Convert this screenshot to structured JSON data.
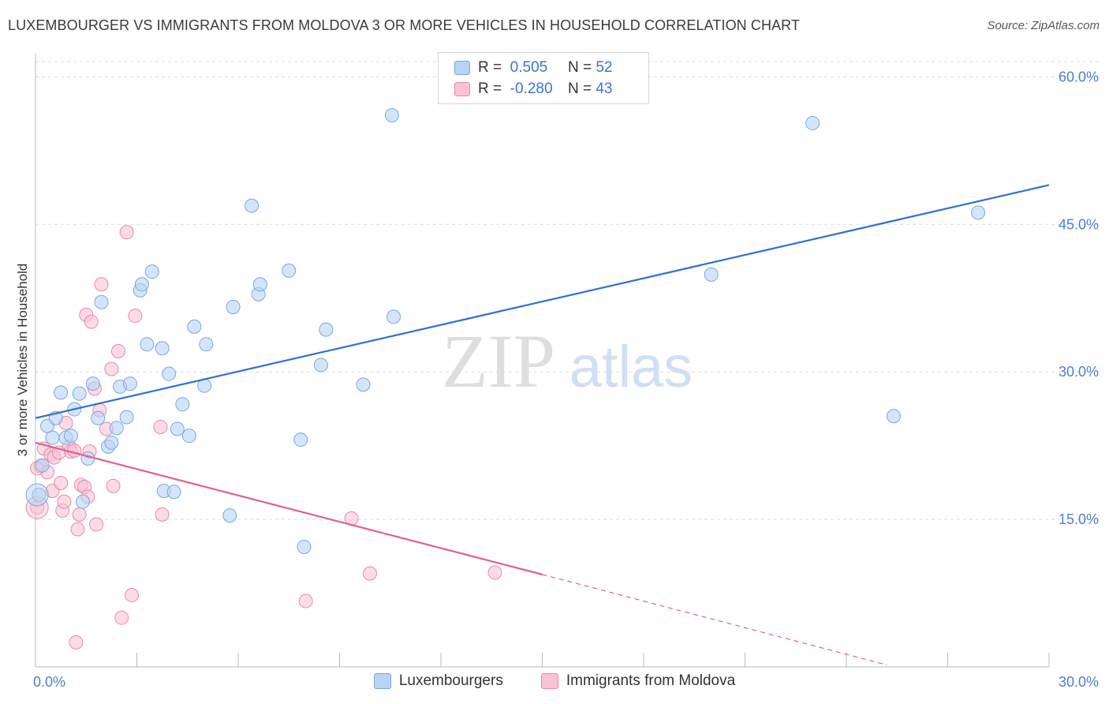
{
  "header": {
    "title": "LUXEMBOURGER VS IMMIGRANTS FROM MOLDOVA 3 OR MORE VEHICLES IN HOUSEHOLD CORRELATION CHART",
    "source": "Source: ZipAtlas.com"
  },
  "watermark": {
    "zip": "ZIP",
    "atlas": "atlas"
  },
  "legend": {
    "rows": [
      {
        "r_label": "R =",
        "r_value": "0.505",
        "n_label": "N =",
        "n_value": "52"
      },
      {
        "r_label": "R =",
        "r_value": "-0.280",
        "n_label": "N =",
        "n_value": "43"
      }
    ]
  },
  "bottom_legend": {
    "items": [
      "Luxembourgers",
      "Immigrants from Moldova"
    ]
  },
  "colors": {
    "blue_fill": "#b9d3f5",
    "blue_stroke": "#7aa7e0",
    "blue_line": "#2f72d0",
    "pink_fill": "#f8c3d3",
    "pink_stroke": "#e88aa7",
    "pink_line": "#e0608e",
    "tick_text": "#4a7fd0",
    "grid": "#dcdcdc"
  },
  "chart_data": {
    "type": "scatter",
    "title": "LUXEMBOURGER VS IMMIGRANTS FROM MOLDOVA 3 OR MORE VEHICLES IN HOUSEHOLD CORRELATION CHART",
    "xlabel": "",
    "ylabel": "3 or more Vehicles in Household",
    "xlim": [
      0,
      30
    ],
    "ylim": [
      0,
      63
    ],
    "x_tick_labels": [
      "0.0%",
      "30.0%"
    ],
    "y_ticks": [
      15,
      30,
      45,
      60
    ],
    "y_tick_labels": [
      "15.0%",
      "30.0%",
      "45.0%",
      "60.0%"
    ],
    "grid": true,
    "legend_position": "top-center",
    "series": [
      {
        "name": "Luxembourgers",
        "color": "#b9d3f5",
        "trend": {
          "x": [
            0,
            30
          ],
          "y": [
            25.3,
            49.0
          ]
        },
        "points": [
          [
            0.1,
            17.5
          ],
          [
            0.2,
            20.5
          ],
          [
            0.35,
            24.5
          ],
          [
            0.5,
            23.3
          ],
          [
            0.6,
            25.3
          ],
          [
            0.75,
            27.9
          ],
          [
            0.9,
            23.3
          ],
          [
            1.05,
            23.5
          ],
          [
            1.15,
            26.2
          ],
          [
            1.3,
            27.8
          ],
          [
            1.4,
            16.8
          ],
          [
            1.55,
            21.2
          ],
          [
            1.7,
            28.8
          ],
          [
            1.85,
            25.3
          ],
          [
            1.95,
            37.1
          ],
          [
            2.15,
            22.4
          ],
          [
            2.25,
            22.8
          ],
          [
            2.4,
            24.3
          ],
          [
            2.5,
            28.5
          ],
          [
            2.7,
            25.4
          ],
          [
            2.8,
            28.8
          ],
          [
            3.1,
            38.3
          ],
          [
            3.15,
            38.9
          ],
          [
            3.3,
            32.8
          ],
          [
            3.45,
            40.2
          ],
          [
            3.75,
            32.4
          ],
          [
            3.8,
            17.9
          ],
          [
            3.95,
            29.8
          ],
          [
            4.1,
            17.8
          ],
          [
            4.2,
            24.2
          ],
          [
            4.35,
            26.7
          ],
          [
            4.55,
            23.5
          ],
          [
            4.7,
            34.6
          ],
          [
            5.0,
            28.6
          ],
          [
            5.05,
            32.8
          ],
          [
            5.75,
            15.4
          ],
          [
            5.85,
            36.6
          ],
          [
            6.6,
            37.9
          ],
          [
            6.65,
            38.9
          ],
          [
            6.4,
            46.9
          ],
          [
            7.5,
            40.3
          ],
          [
            7.85,
            23.1
          ],
          [
            7.95,
            12.2
          ],
          [
            8.45,
            30.7
          ],
          [
            8.6,
            34.3
          ],
          [
            9.7,
            28.7
          ],
          [
            10.6,
            35.6
          ],
          [
            10.55,
            56.1
          ],
          [
            20.0,
            39.9
          ],
          [
            23.0,
            55.3
          ],
          [
            25.4,
            25.5
          ],
          [
            27.9,
            46.2
          ]
        ]
      },
      {
        "name": "Immigrants from Moldova",
        "color": "#f8c3d3",
        "trend": {
          "x": [
            0,
            15
          ],
          "y": [
            22.8,
            9.4
          ],
          "dashed_extension": {
            "x": [
              15,
              25.2
            ],
            "y": [
              9.4,
              0.2
            ]
          }
        },
        "points": [
          [
            0.05,
            16.2
          ],
          [
            0.15,
            20.4
          ],
          [
            0.25,
            22.2
          ],
          [
            0.35,
            19.8
          ],
          [
            0.45,
            21.6
          ],
          [
            0.5,
            17.9
          ],
          [
            0.55,
            21.3
          ],
          [
            0.7,
            21.8
          ],
          [
            0.75,
            18.7
          ],
          [
            0.8,
            15.9
          ],
          [
            0.85,
            16.8
          ],
          [
            0.9,
            24.8
          ],
          [
            1.0,
            22.4
          ],
          [
            1.05,
            21.9
          ],
          [
            1.15,
            22.0
          ],
          [
            1.2,
            2.5
          ],
          [
            1.25,
            14.0
          ],
          [
            1.3,
            15.5
          ],
          [
            1.35,
            18.5
          ],
          [
            1.45,
            18.3
          ],
          [
            1.5,
            35.8
          ],
          [
            1.55,
            17.3
          ],
          [
            1.6,
            21.9
          ],
          [
            1.65,
            35.1
          ],
          [
            1.75,
            28.3
          ],
          [
            1.8,
            14.5
          ],
          [
            1.9,
            26.1
          ],
          [
            1.95,
            38.9
          ],
          [
            2.1,
            24.2
          ],
          [
            2.25,
            30.3
          ],
          [
            2.3,
            18.4
          ],
          [
            2.45,
            32.1
          ],
          [
            2.55,
            5.0
          ],
          [
            2.7,
            44.2
          ],
          [
            2.85,
            7.3
          ],
          [
            2.95,
            35.7
          ],
          [
            3.7,
            24.4
          ],
          [
            3.75,
            15.5
          ],
          [
            8.0,
            6.7
          ],
          [
            9.35,
            15.1
          ],
          [
            9.9,
            9.5
          ],
          [
            13.6,
            9.6
          ],
          [
            0.05,
            20.2
          ]
        ]
      }
    ]
  }
}
